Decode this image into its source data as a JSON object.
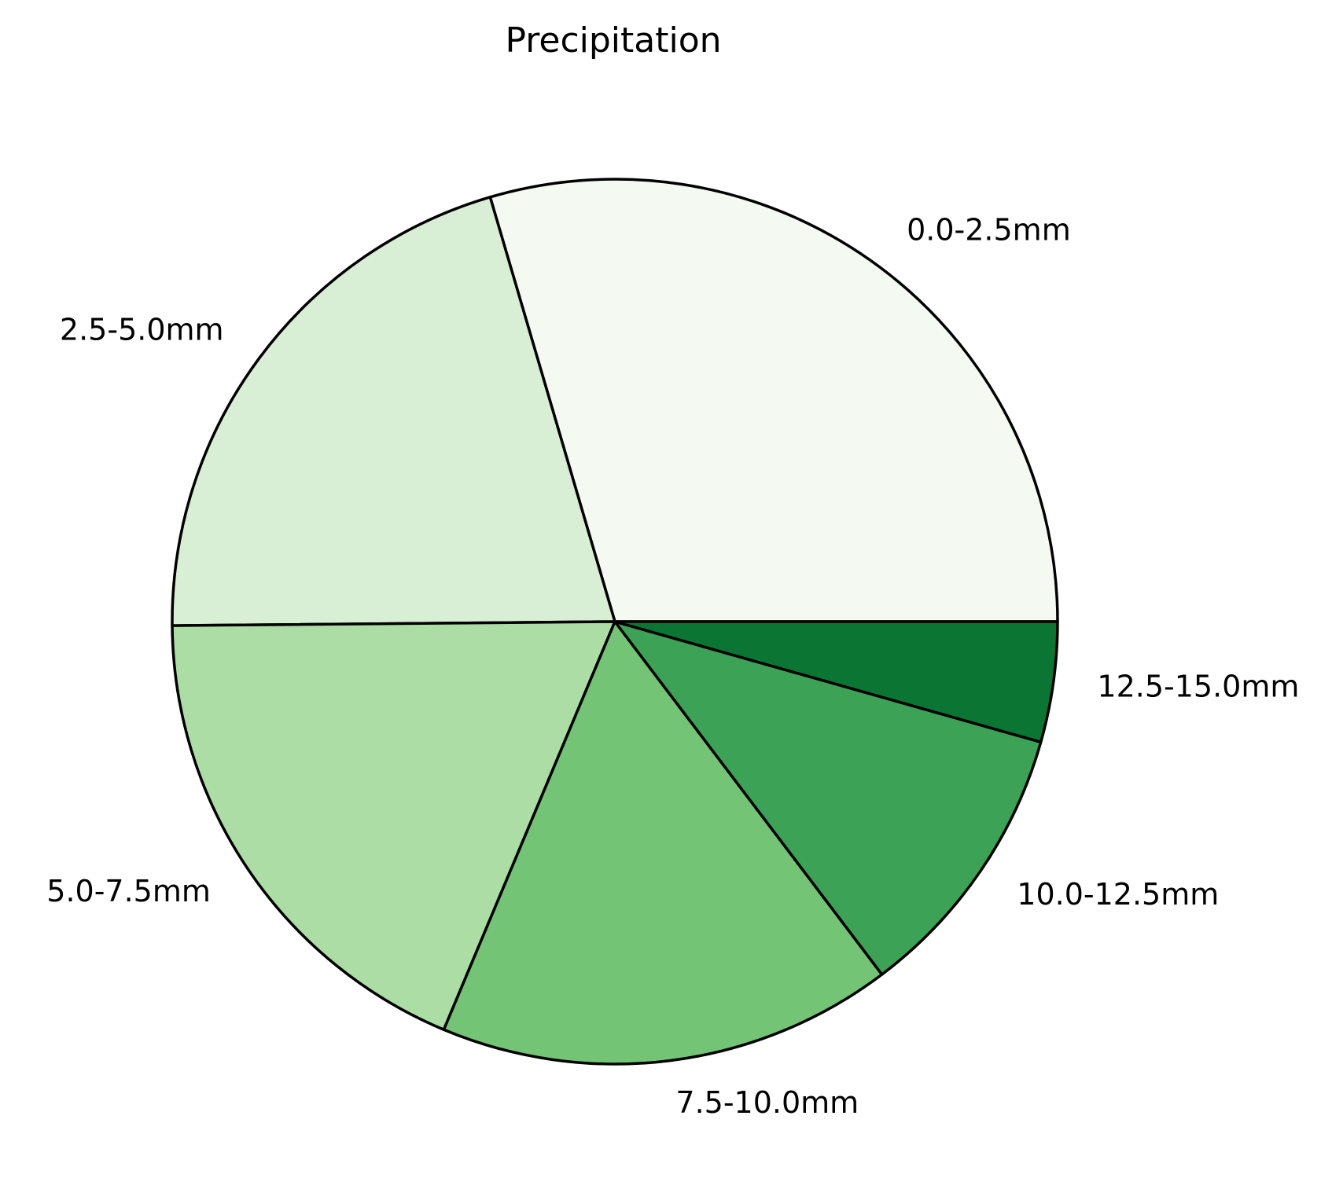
{
  "chart_data": {
    "type": "pie",
    "title": "Precipitation",
    "start_angle_deg": 0,
    "direction": "counterclockwise",
    "edge_color": "#000000",
    "slices": [
      {
        "label": "0.0-2.5mm",
        "value": 29.88,
        "color": "#f4f9f1"
      },
      {
        "label": "2.5-5.0mm",
        "value": 20.83,
        "color": "#d9efd5"
      },
      {
        "label": "5.0-7.5mm",
        "value": 18.75,
        "color": "#acdda5"
      },
      {
        "label": "7.5-10.0mm",
        "value": 16.81,
        "color": "#74c476"
      },
      {
        "label": "10.0-12.5mm",
        "value": 10.42,
        "color": "#3ba256"
      },
      {
        "label": "12.5-15.0mm",
        "value": 4.44,
        "color": "#0b7533"
      }
    ]
  }
}
